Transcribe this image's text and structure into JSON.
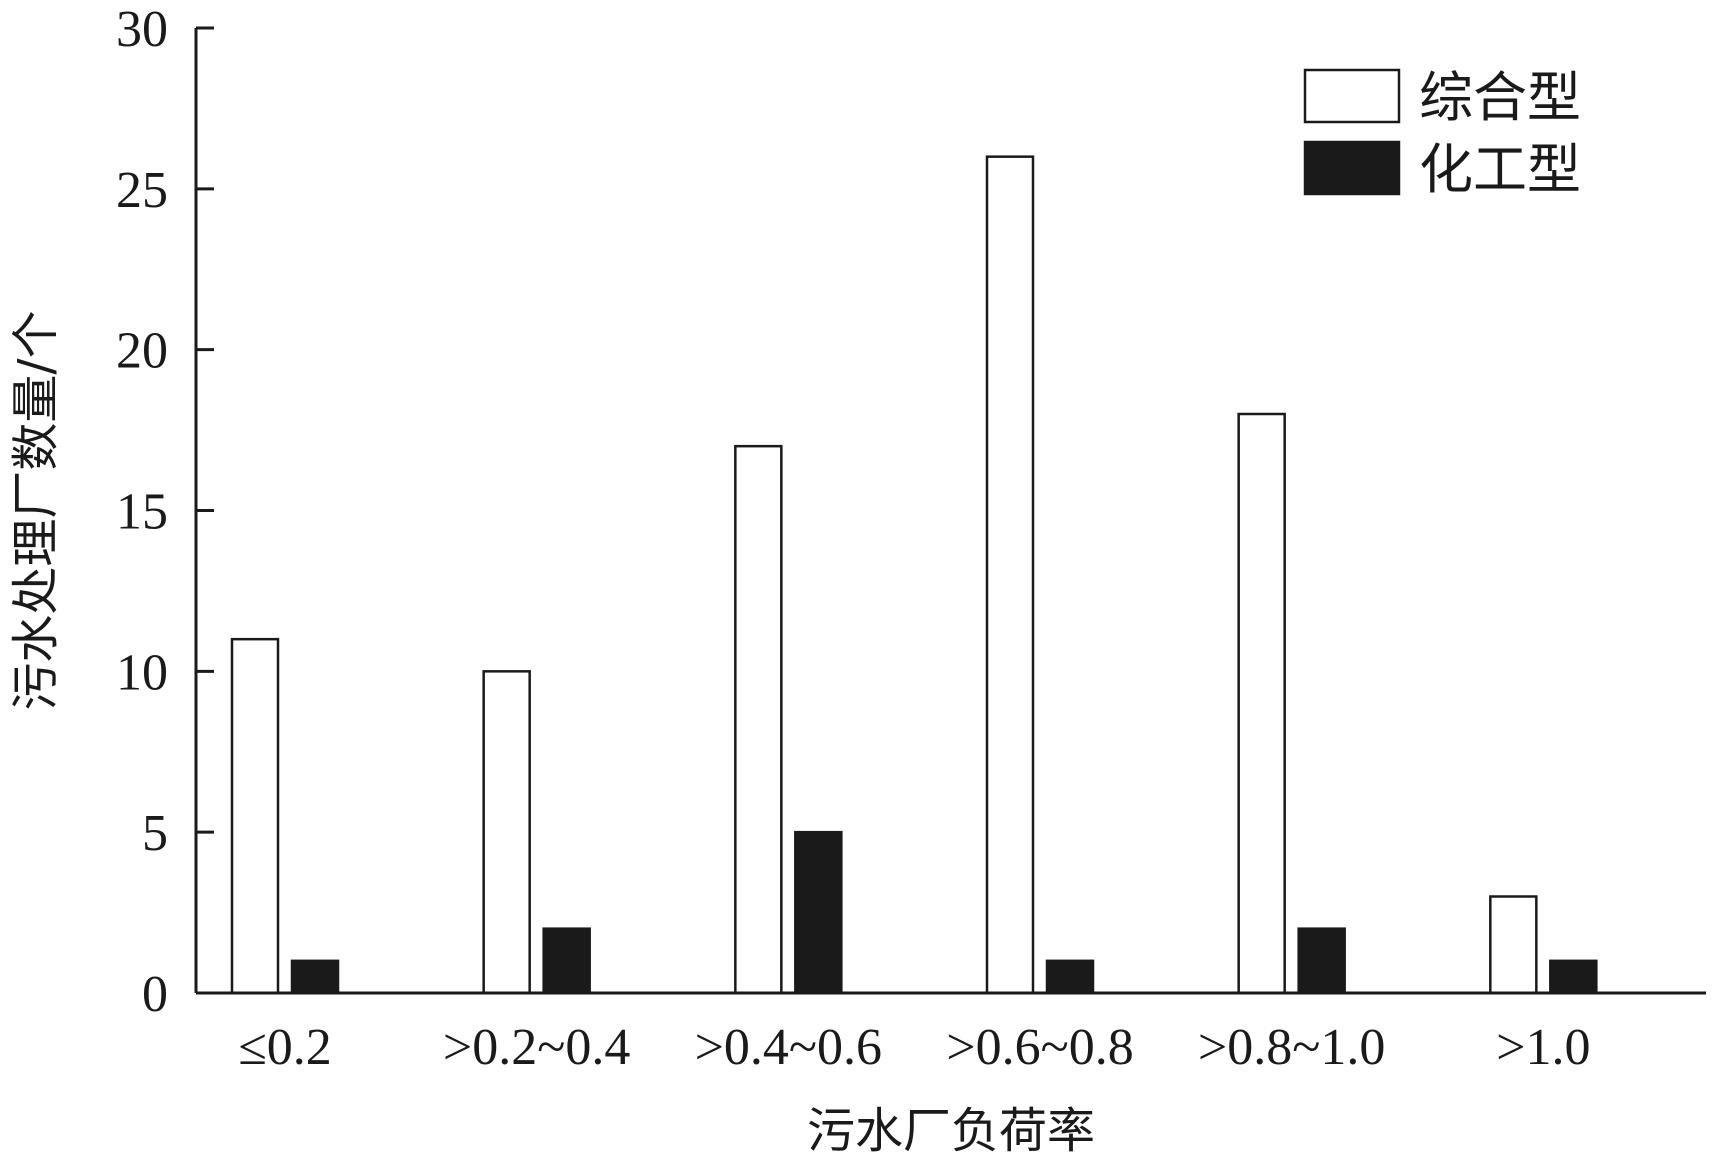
{
  "chart_data": {
    "type": "bar",
    "categories": [
      "≤0.2",
      ">0.2~0.4",
      ">0.4~0.6",
      ">0.6~0.8",
      ">0.8~1.0",
      ">1.0"
    ],
    "series": [
      {
        "name": "综合型",
        "values": [
          11,
          10,
          17,
          26,
          18,
          3
        ],
        "fill": "#ffffff",
        "stroke": "#1a1a1a"
      },
      {
        "name": "化工型",
        "values": [
          1,
          2,
          5,
          1,
          2,
          1
        ],
        "fill": "#1a1a1a",
        "stroke": "#1a1a1a"
      }
    ],
    "xlabel": "污水厂负荷率",
    "ylabel": "污水处理厂数量/个",
    "ylim": [
      0,
      30
    ],
    "yticks": [
      0,
      5,
      10,
      15,
      20,
      25,
      30
    ],
    "legend_position": "top-right",
    "grid": false
  }
}
